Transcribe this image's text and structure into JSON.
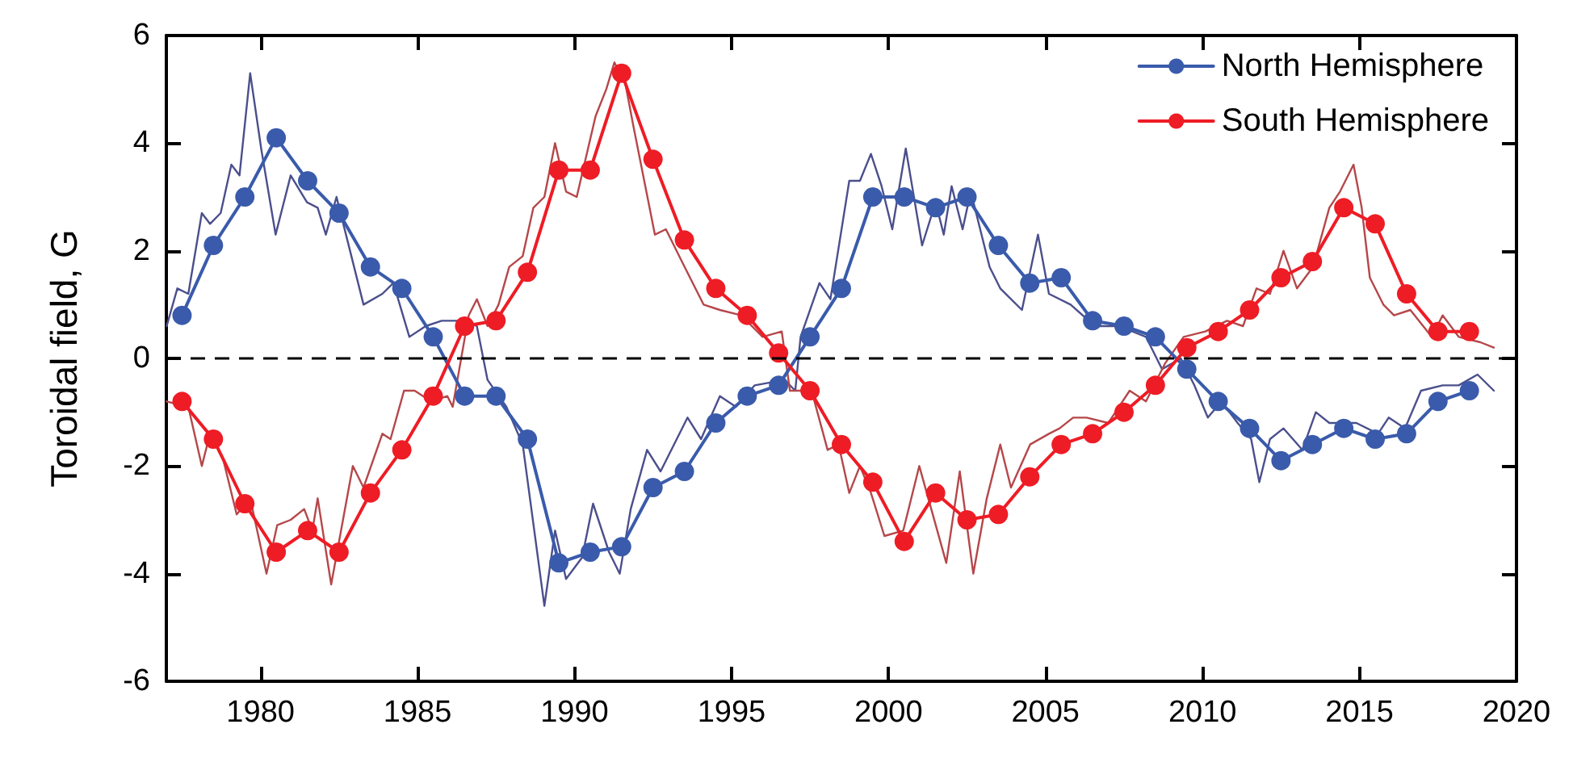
{
  "chart_data": {
    "type": "line",
    "ylabel": "Toroidal field, G",
    "xlim": [
      1977,
      2020
    ],
    "xticks": [
      1980,
      1985,
      1990,
      1995,
      2000,
      2005,
      2010,
      2015,
      2020
    ],
    "ylim": [
      -6,
      6
    ],
    "yticks": [
      -6,
      -4,
      -2,
      0,
      2,
      4,
      6
    ],
    "legend": "top right",
    "marker": "circle",
    "ref_lines": [
      {
        "axis": "y",
        "value": 0,
        "label": null,
        "color": "#000000",
        "line_style": "dashed"
      }
    ],
    "series": [
      {
        "marker": "none",
        "color": "#4b4f8c",
        "x": [
          1977.01,
          1977.35,
          1977.7,
          1978.13,
          1978.39,
          1978.73,
          1979.07,
          1979.33,
          1979.67,
          1980.02,
          1980.48,
          1980.96,
          1981.48,
          1981.82,
          1982.08,
          1982.42,
          1982.85,
          1983.28,
          1983.88,
          1984.23,
          1984.74,
          1985.26,
          1985.77,
          1986.46,
          1986.89,
          1987.23,
          1987.83,
          1988.35,
          1989.04,
          1989.38,
          1989.73,
          1990.24,
          1990.59,
          1991.1,
          1991.44,
          1991.79,
          1992.31,
          1992.74,
          1993.6,
          1994.03,
          1994.63,
          1995.14,
          1995.74,
          1996.69,
          1997.03,
          1997.2,
          1997.8,
          1998.15,
          1998.75,
          1999.09,
          1999.44,
          1999.78,
          2000.12,
          2000.55,
          2001.07,
          2001.5,
          2001.76,
          2002.01,
          2002.36,
          2002.62,
          2003.22,
          2003.56,
          2004.25,
          2004.76,
          2005.11,
          2005.8,
          2006.57,
          2007.34,
          2008.2,
          2008.71,
          2009.31,
          2009.74,
          2010.17,
          2010.6,
          2011.12,
          2011.55,
          2011.81,
          2012.15,
          2012.58,
          2013.18,
          2013.61,
          2014.04,
          2014.9,
          2015.59,
          2015.93,
          2016.45,
          2016.96,
          2017.65,
          2018.16,
          2018.76,
          2019.28
        ],
        "values": [
          0.6,
          1.3,
          1.2,
          2.7,
          2.5,
          2.7,
          3.6,
          3.4,
          5.3,
          3.9,
          2.3,
          3.4,
          2.9,
          2.8,
          2.3,
          3.0,
          2.0,
          1.0,
          1.2,
          1.4,
          0.4,
          0.6,
          0.7,
          0.7,
          0.6,
          -0.4,
          -0.9,
          -1.6,
          -4.6,
          -3.2,
          -4.1,
          -3.7,
          -2.7,
          -3.6,
          -4.0,
          -2.8,
          -1.7,
          -2.1,
          -1.1,
          -1.5,
          -0.7,
          -0.9,
          -0.5,
          -0.4,
          -0.6,
          0.4,
          1.4,
          1.1,
          3.3,
          3.3,
          3.8,
          3.2,
          2.4,
          3.9,
          2.1,
          2.9,
          2.3,
          3.2,
          2.4,
          3.1,
          1.7,
          1.3,
          0.9,
          2.3,
          1.2,
          1.0,
          0.6,
          0.6,
          0.4,
          -0.2,
          0.0,
          -0.5,
          -1.1,
          -0.8,
          -1.2,
          -1.5,
          -2.3,
          -1.5,
          -1.3,
          -1.7,
          -1.0,
          -1.2,
          -1.2,
          -1.4,
          -1.1,
          -1.3,
          -0.6,
          -0.5,
          -0.5,
          -0.3,
          -0.6
        ]
      },
      {
        "marker": "none",
        "color": "#b5474a",
        "x": [
          1977.01,
          1977.7,
          1978.13,
          1978.39,
          1978.82,
          1979.24,
          1979.67,
          1980.19,
          1980.53,
          1980.96,
          1981.39,
          1981.65,
          1981.82,
          1982.25,
          1982.94,
          1983.28,
          1983.88,
          1984.14,
          1984.57,
          1984.91,
          1985.43,
          1985.95,
          1986.12,
          1986.63,
          1986.89,
          1987.23,
          1987.58,
          1987.92,
          1988.35,
          1988.69,
          1989.04,
          1989.38,
          1989.73,
          1990.07,
          1990.67,
          1991.01,
          1991.27,
          1991.62,
          1991.88,
          1992.56,
          1992.91,
          1993.42,
          1994.11,
          1994.63,
          1995.31,
          1995.99,
          1996.6,
          1996.86,
          1997.55,
          1998.06,
          1998.41,
          1998.75,
          1999.09,
          1999.44,
          1999.87,
          2000.47,
          2000.98,
          2001.41,
          2001.84,
          2002.27,
          2002.7,
          2003.13,
          2003.56,
          2003.9,
          2004.51,
          2005.11,
          2005.45,
          2005.88,
          2006.31,
          2007.0,
          2007.68,
          2008.2,
          2008.8,
          2009.4,
          2010.09,
          2010.78,
          2011.29,
          2011.72,
          2012.15,
          2012.58,
          2013.01,
          2013.52,
          2014.04,
          2014.38,
          2014.81,
          2015.07,
          2015.33,
          2015.76,
          2016.1,
          2016.62,
          2017.3,
          2017.65,
          2018.16,
          2018.85,
          2019.28
        ],
        "values": [
          -0.8,
          -0.9,
          -2.0,
          -1.4,
          -1.9,
          -2.9,
          -2.6,
          -4.0,
          -3.1,
          -3.0,
          -2.8,
          -3.2,
          -2.6,
          -4.2,
          -2.0,
          -2.4,
          -1.4,
          -1.5,
          -0.6,
          -0.6,
          -0.8,
          -0.7,
          -0.9,
          0.8,
          1.1,
          0.6,
          1.0,
          1.7,
          1.9,
          2.8,
          3.0,
          4.0,
          3.1,
          3.0,
          4.5,
          5.0,
          5.5,
          5.1,
          4.3,
          2.3,
          2.4,
          1.8,
          1.0,
          0.9,
          0.8,
          0.4,
          0.5,
          -0.6,
          -0.6,
          -1.7,
          -1.6,
          -2.5,
          -2.0,
          -2.5,
          -3.3,
          -3.2,
          -2.0,
          -2.9,
          -3.8,
          -2.1,
          -4.0,
          -2.6,
          -1.6,
          -2.4,
          -1.6,
          -1.4,
          -1.3,
          -1.1,
          -1.1,
          -1.2,
          -0.6,
          -0.8,
          -0.1,
          0.4,
          0.5,
          0.7,
          0.6,
          1.3,
          1.2,
          2.0,
          1.3,
          1.7,
          2.8,
          3.1,
          3.6,
          2.8,
          1.5,
          1.0,
          0.8,
          0.9,
          0.4,
          0.8,
          0.4,
          0.3,
          0.2
        ]
      },
      {
        "name": "North Hemisphere",
        "color": "#3a5bab",
        "x": [
          1977.5,
          1978.5,
          1979.5,
          1980.5,
          1981.5,
          1982.5,
          1983.5,
          1984.5,
          1985.5,
          1986.5,
          1987.5,
          1988.5,
          1989.5,
          1990.5,
          1991.5,
          1992.5,
          1993.5,
          1994.5,
          1995.5,
          1996.5,
          1997.5,
          1998.5,
          1999.5,
          2000.5,
          2001.5,
          2002.5,
          2003.5,
          2004.5,
          2005.5,
          2006.5,
          2007.5,
          2008.5,
          2009.5,
          2010.5,
          2011.5,
          2012.5,
          2013.5,
          2014.5,
          2015.5,
          2016.5,
          2017.5,
          2018.5
        ],
        "values": [
          0.8,
          2.1,
          3.0,
          4.1,
          3.3,
          2.7,
          1.7,
          1.3,
          0.4,
          -0.7,
          -0.7,
          -1.5,
          -3.8,
          -3.6,
          -3.5,
          -2.4,
          -2.1,
          -1.2,
          -0.7,
          -0.5,
          0.4,
          1.3,
          3.0,
          3.0,
          2.8,
          3.0,
          2.1,
          1.4,
          1.5,
          0.7,
          0.6,
          0.4,
          -0.2,
          -0.8,
          -1.3,
          -1.9,
          -1.6,
          -1.3,
          -1.5,
          -1.4,
          -0.8,
          -0.6
        ]
      },
      {
        "name": "South Hemisphere",
        "color": "#ee1c25",
        "x": [
          1977.5,
          1978.5,
          1979.5,
          1980.5,
          1981.5,
          1982.5,
          1983.5,
          1984.5,
          1985.5,
          1986.5,
          1987.5,
          1988.5,
          1989.5,
          1990.5,
          1991.5,
          1992.5,
          1993.5,
          1994.5,
          1995.5,
          1996.5,
          1997.5,
          1998.5,
          1999.5,
          2000.5,
          2001.5,
          2002.5,
          2003.5,
          2004.5,
          2005.5,
          2006.5,
          2007.5,
          2008.5,
          2009.5,
          2010.5,
          2011.5,
          2012.5,
          2013.5,
          2014.5,
          2015.5,
          2016.5,
          2017.5,
          2018.5
        ],
        "values": [
          -0.8,
          -1.5,
          -2.7,
          -3.6,
          -3.2,
          -3.6,
          -2.5,
          -1.7,
          -0.7,
          0.6,
          0.7,
          1.6,
          3.5,
          3.5,
          5.3,
          3.7,
          2.2,
          1.3,
          0.8,
          0.1,
          -0.6,
          -1.6,
          -2.3,
          -3.4,
          -2.5,
          -3.0,
          -2.9,
          -2.2,
          -1.6,
          -1.4,
          -1.0,
          -0.5,
          0.2,
          0.5,
          0.9,
          1.5,
          1.8,
          2.8,
          2.5,
          1.2,
          0.5,
          0.5
        ]
      }
    ]
  }
}
